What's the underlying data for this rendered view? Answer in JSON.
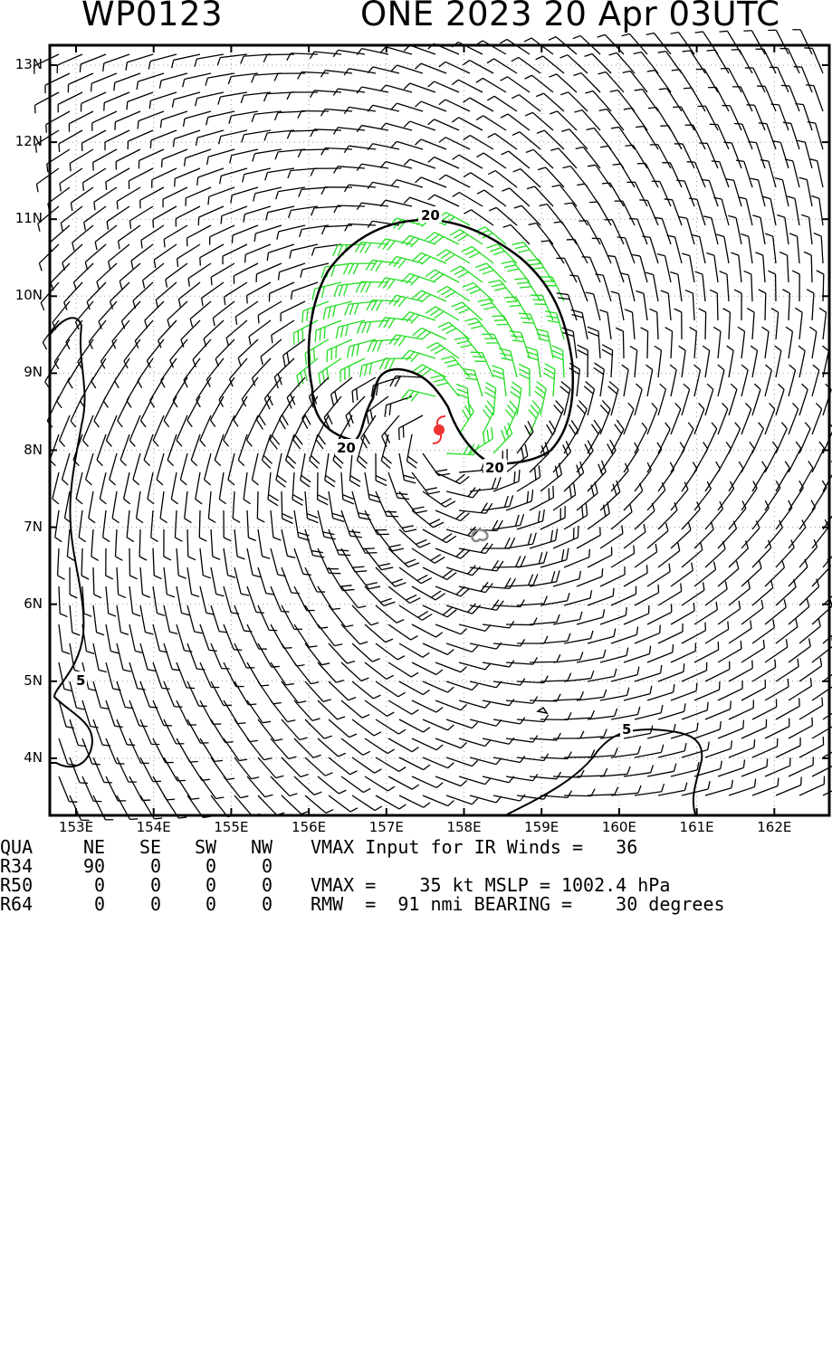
{
  "header": {
    "storm_id": "WP0123",
    "storm_info": "ONE 2023 20 Apr 03UTC"
  },
  "map": {
    "lat_labels": [
      "13N",
      "12N",
      "11N",
      "10N",
      "9N",
      "8N",
      "7N",
      "6N",
      "5N",
      "4N"
    ],
    "lon_labels": [
      "153E",
      "154E",
      "155E",
      "156E",
      "157E",
      "158E",
      "159E",
      "160E",
      "161E",
      "162E"
    ],
    "contour_labels": [
      "20",
      "20",
      "20",
      "5",
      "5"
    ],
    "colors": {
      "barb_default": "#000000",
      "barb_gale": "#22dd22",
      "storm_center": "#ee3333",
      "contour": "#000000",
      "grid": "#999999",
      "land": "#888888"
    },
    "storm_center_icon": "tropical-cyclone-icon"
  },
  "table": {
    "headers": [
      "QUA",
      "NE",
      "SE",
      "SW",
      "NW"
    ],
    "rows": [
      {
        "label": "R34",
        "values": [
          "90",
          "0",
          "0",
          "0"
        ]
      },
      {
        "label": "R50",
        "values": [
          "0",
          "0",
          "0",
          "0"
        ]
      },
      {
        "label": "R64",
        "values": [
          "0",
          "0",
          "0",
          "0"
        ]
      }
    ],
    "vmax_input_text": "VMAX Input for IR Winds =   36",
    "vmax_mslp_text": "VMAX =    35 kt MSLP = 1002.4 hPa",
    "rmw_text": "RMW  =  91 nmi BEARING =    30 degrees"
  }
}
